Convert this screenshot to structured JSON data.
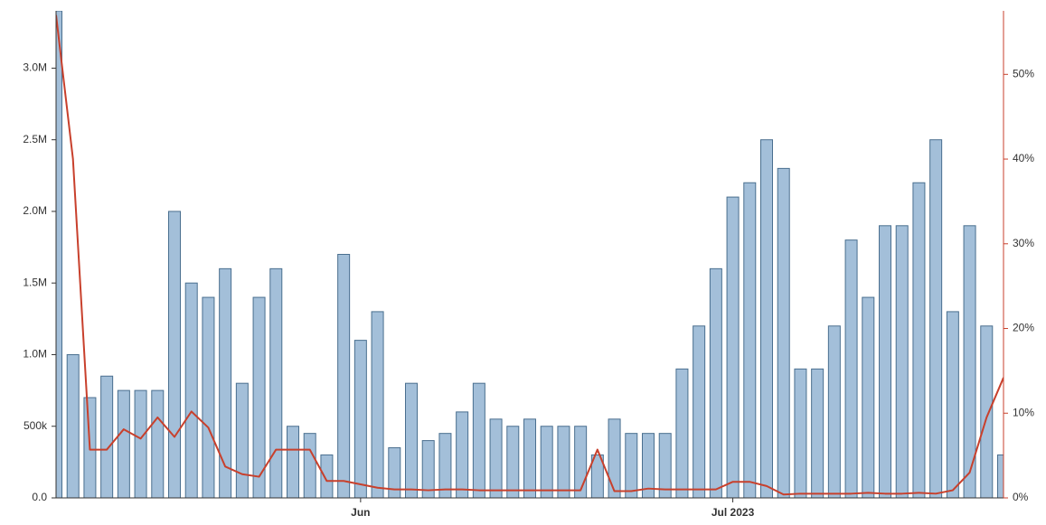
{
  "chart_data": {
    "type": "bar_line",
    "categories": [
      null,
      null,
      null,
      null,
      null,
      null,
      null,
      null,
      null,
      null,
      null,
      null,
      null,
      null,
      null,
      null,
      null,
      null,
      "Jun",
      null,
      null,
      null,
      null,
      null,
      null,
      null,
      null,
      null,
      null,
      null,
      null,
      null,
      null,
      null,
      null,
      null,
      null,
      null,
      null,
      null,
      "Jul 2023",
      null,
      null,
      null,
      null,
      null,
      null,
      null,
      null,
      null,
      null,
      null,
      null,
      null,
      null,
      null,
      null
    ],
    "series": [
      {
        "type": "bar",
        "color": "#a3bfd9",
        "values": [
          3400000,
          1000000,
          700000,
          850000,
          750000,
          750000,
          750000,
          2000000,
          1500000,
          1400000,
          1600000,
          800000,
          1400000,
          1600000,
          500000,
          450000,
          300000,
          1700000,
          1100000,
          1300000,
          350000,
          800000,
          400000,
          450000,
          600000,
          800000,
          550000,
          500000,
          550000,
          500000,
          500000,
          500000,
          300000,
          550000,
          450000,
          450000,
          450000,
          900000,
          1200000,
          1600000,
          2100000,
          2200000,
          2500000,
          2300000,
          900000,
          900000,
          1200000,
          1800000,
          1400000,
          1900000,
          1900000,
          2200000,
          2500000,
          1300000,
          1900000,
          1200000,
          300000
        ]
      },
      {
        "type": "line",
        "axis": "y2",
        "color": "#c8402c",
        "values": [
          57,
          40,
          5.7,
          5.7,
          8.1,
          7.0,
          9.5,
          7.2,
          10.2,
          8.3,
          3.7,
          2.8,
          2.5,
          5.7,
          5.7,
          5.7,
          2.0,
          2.0,
          1.6,
          1.2,
          1.0,
          1.0,
          0.9,
          1.0,
          1.0,
          0.9,
          0.9,
          0.9,
          0.9,
          0.9,
          0.9,
          0.9,
          5.7,
          0.8,
          0.8,
          1.1,
          1.0,
          1.0,
          1.0,
          1.0,
          1.9,
          1.9,
          1.4,
          0.4,
          0.5,
          0.5,
          0.5,
          0.5,
          0.6,
          0.5,
          0.5,
          0.6,
          0.5,
          0.9,
          3.0,
          9.5,
          14.2
        ]
      }
    ],
    "ylim": [
      0,
      3400000
    ],
    "yticks": [
      {
        "value": 0,
        "label": "0.0"
      },
      {
        "value": 500000,
        "label": "500k"
      },
      {
        "value": 1000000,
        "label": "1.0M"
      },
      {
        "value": 1500000,
        "label": "1.5M"
      },
      {
        "value": 2000000,
        "label": "2.0M"
      },
      {
        "value": 2500000,
        "label": "2.5M"
      },
      {
        "value": 3000000,
        "label": "3.0M"
      }
    ],
    "y2lim": [
      0,
      57.5
    ],
    "y2ticks": [
      {
        "value": 0,
        "label": "0%"
      },
      {
        "value": 10,
        "label": "10%"
      },
      {
        "value": 20,
        "label": "20%"
      },
      {
        "value": 30,
        "label": "30%"
      },
      {
        "value": 40,
        "label": "40%"
      },
      {
        "value": 50,
        "label": "50%"
      }
    ],
    "grid": false
  }
}
